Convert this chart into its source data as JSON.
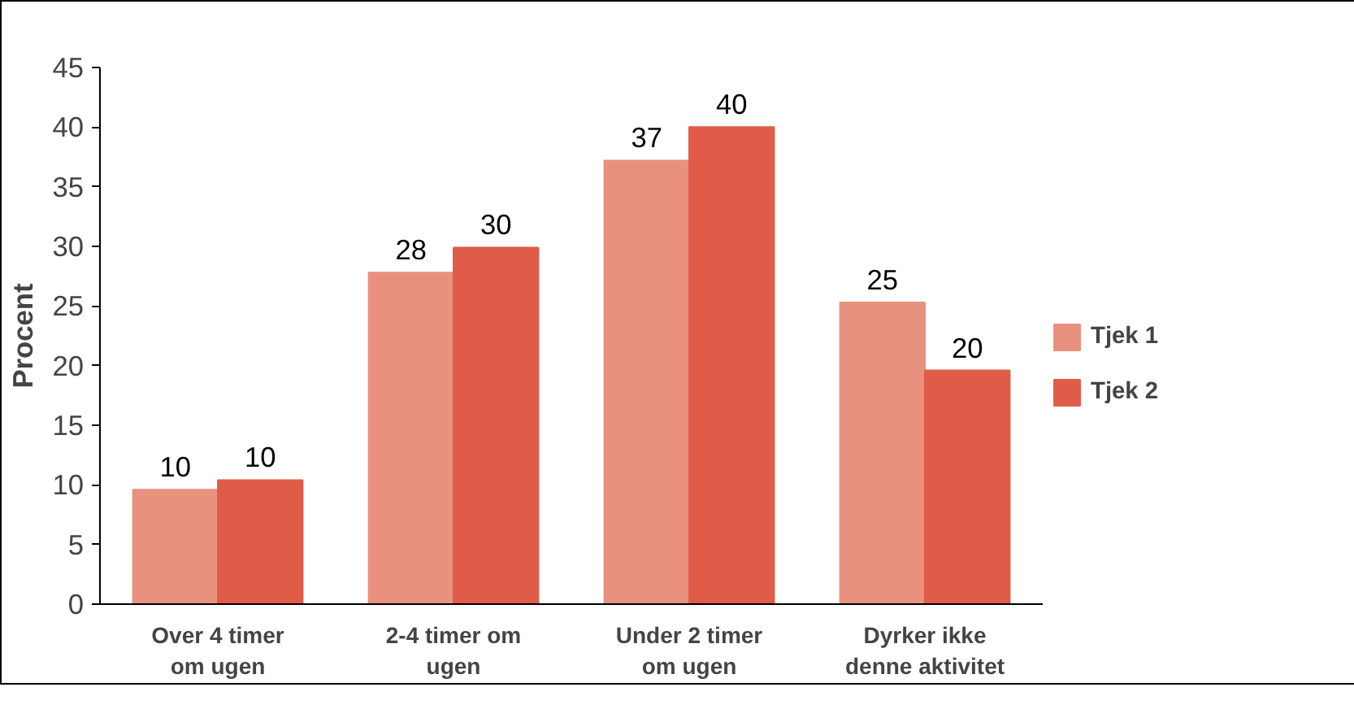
{
  "chart_data": {
    "type": "bar",
    "ylabel": "Procent",
    "categories": [
      "Over 4 timer\nom ugen",
      "2-4 timer om\nugen",
      "Under 2 timer\nom ugen",
      "Dyrker ikke\ndenne aktivitet"
    ],
    "series": [
      {
        "name": "Tjek 1",
        "color": "#e8917f",
        "values": [
          9.6,
          27.8,
          37.2,
          25.3
        ],
        "value_labels": [
          "10",
          "28",
          "37",
          "25"
        ]
      },
      {
        "name": "Tjek 2",
        "color": "#e05c48",
        "values": [
          10.4,
          29.9,
          40.0,
          19.6
        ],
        "value_labels": [
          "10",
          "30",
          "40",
          "20"
        ]
      }
    ],
    "ylim": [
      0,
      45
    ],
    "yticks": [
      0,
      5,
      10,
      15,
      20,
      25,
      30,
      35,
      40,
      45
    ],
    "grid": false,
    "legend": "right"
  }
}
